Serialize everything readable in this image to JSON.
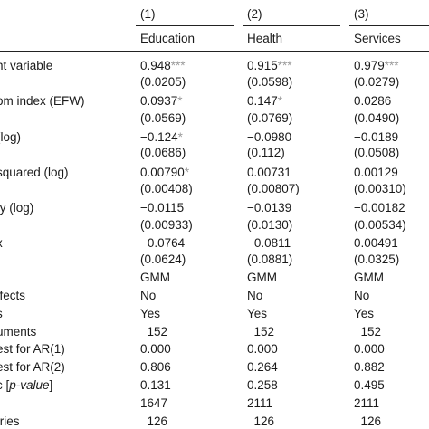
{
  "columns": [
    {
      "num": "(1)",
      "name": "Education"
    },
    {
      "num": "(2)",
      "name": "Health"
    },
    {
      "num": "(3)",
      "name": "Services"
    }
  ],
  "rows": [
    {
      "label": "nt variable",
      "values": [
        "0.948",
        "0.915",
        "0.979"
      ],
      "stars": [
        "***",
        "***",
        "***"
      ]
    },
    {
      "label": "",
      "values": [
        "(0.0205)",
        "(0.0598)",
        "(0.0279)"
      ],
      "stars": [
        "",
        "",
        ""
      ]
    },
    {
      "label": "om index (EFW)",
      "values": [
        "0.0937",
        "0.147",
        "0.0286"
      ],
      "stars": [
        "*",
        "*",
        ""
      ]
    },
    {
      "label": "",
      "values": [
        "(0.0569)",
        "(0.0769)",
        "(0.0490)"
      ],
      "stars": [
        "",
        "",
        ""
      ]
    },
    {
      "label": "(log)",
      "values": [
        "−0.124",
        "−0.0980",
        "−0.0189"
      ],
      "stars": [
        "*",
        "",
        ""
      ]
    },
    {
      "label": "",
      "values": [
        "(0.0686)",
        "(0.112)",
        "(0.0508)"
      ],
      "stars": [
        "",
        "",
        ""
      ]
    },
    {
      "label": "squared (log)",
      "values": [
        "0.00790",
        "0.00731",
        "0.00129"
      ],
      "stars": [
        "*",
        "",
        ""
      ]
    },
    {
      "label": "",
      "values": [
        "(0.00408)",
        "(0.00807)",
        "(0.00310)"
      ],
      "stars": [
        "",
        "",
        ""
      ]
    },
    {
      "label": "ty (log)",
      "values": [
        "−0.0115",
        "−0.0139",
        "−0.00182"
      ],
      "stars": [
        "",
        "",
        ""
      ]
    },
    {
      "label": "",
      "values": [
        "(0.00933)",
        "(0.0130)",
        "(0.00534)"
      ],
      "stars": [
        "",
        "",
        ""
      ]
    },
    {
      "label": "x",
      "values": [
        "−0.0764",
        "−0.0811",
        "0.00491"
      ],
      "stars": [
        "",
        "",
        ""
      ]
    },
    {
      "label": "",
      "values": [
        "(0.0624)",
        "(0.0881)",
        "(0.0325)"
      ],
      "stars": [
        "",
        "",
        ""
      ]
    },
    {
      "label": "",
      "values": [
        "GMM",
        "GMM",
        "GMM"
      ],
      "stars": [
        "",
        "",
        ""
      ]
    },
    {
      "label": "ffects",
      "values": [
        "No",
        "No",
        "No"
      ],
      "stars": [
        "",
        "",
        ""
      ]
    },
    {
      "label": "s",
      "values": [
        "Yes",
        "Yes",
        "Yes"
      ],
      "stars": [
        "",
        "",
        ""
      ]
    },
    {
      "label": "uments",
      "values": [
        "  152",
        "  152",
        "  152"
      ],
      "stars": [
        "",
        "",
        ""
      ]
    },
    {
      "label": "est for AR(1)",
      "values": [
        "0.000",
        "0.000",
        "0.000"
      ],
      "stars": [
        "",
        "",
        ""
      ]
    },
    {
      "label": "est for AR(2)",
      "values": [
        "0.806",
        "0.264",
        "0.882"
      ],
      "stars": [
        "",
        "",
        ""
      ]
    },
    {
      "label": "c [p-value]",
      "values": [
        "0.131",
        "0.258",
        "0.495"
      ],
      "stars": [
        "",
        "",
        ""
      ]
    },
    {
      "label": "",
      "values": [
        "1647",
        "2111",
        "2111"
      ],
      "stars": [
        "",
        "",
        ""
      ]
    },
    {
      "label": "tries",
      "values": [
        "  126",
        "  126",
        "  126"
      ],
      "stars": [
        "",
        "",
        ""
      ]
    }
  ]
}
